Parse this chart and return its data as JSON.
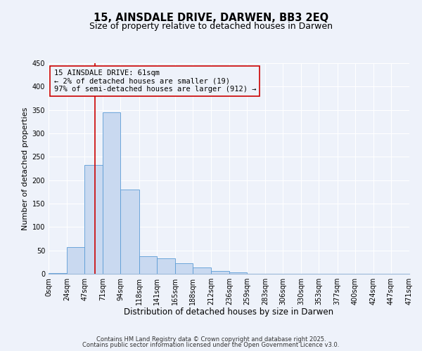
{
  "title": "15, AINSDALE DRIVE, DARWEN, BB3 2EQ",
  "subtitle": "Size of property relative to detached houses in Darwen",
  "xlabel": "Distribution of detached houses by size in Darwen",
  "ylabel": "Number of detached properties",
  "bin_edges": [
    0,
    24,
    47,
    71,
    94,
    118,
    141,
    165,
    188,
    212,
    236,
    259,
    283,
    306,
    330,
    353,
    377,
    400,
    424,
    447,
    471
  ],
  "bin_counts": [
    2,
    57,
    233,
    345,
    180,
    37,
    33,
    22,
    14,
    6,
    3,
    0,
    0,
    0,
    0,
    0,
    0,
    0,
    0,
    0
  ],
  "bar_facecolor": "#c9d9f0",
  "bar_edgecolor": "#5b9bd5",
  "property_line_x": 61,
  "property_line_color": "#cc0000",
  "annotation_line1": "15 AINSDALE DRIVE: 61sqm",
  "annotation_line2": "← 2% of detached houses are smaller (19)",
  "annotation_line3": "97% of semi-detached houses are larger (912) →",
  "annotation_box_edgecolor": "#cc0000",
  "xlim": [
    0,
    471
  ],
  "ylim": [
    0,
    450
  ],
  "yticks": [
    0,
    50,
    100,
    150,
    200,
    250,
    300,
    350,
    400,
    450
  ],
  "xtick_labels": [
    "0sqm",
    "24sqm",
    "47sqm",
    "71sqm",
    "94sqm",
    "118sqm",
    "141sqm",
    "165sqm",
    "188sqm",
    "212sqm",
    "236sqm",
    "259sqm",
    "283sqm",
    "306sqm",
    "330sqm",
    "353sqm",
    "377sqm",
    "400sqm",
    "424sqm",
    "447sqm",
    "471sqm"
  ],
  "background_color": "#eef2fa",
  "grid_color": "#ffffff",
  "footer_line1": "Contains HM Land Registry data © Crown copyright and database right 2025.",
  "footer_line2": "Contains public sector information licensed under the Open Government Licence v3.0.",
  "title_fontsize": 10.5,
  "subtitle_fontsize": 9,
  "xlabel_fontsize": 8.5,
  "ylabel_fontsize": 8,
  "tick_fontsize": 7,
  "annot_fontsize": 7.5,
  "footer_fontsize": 6
}
